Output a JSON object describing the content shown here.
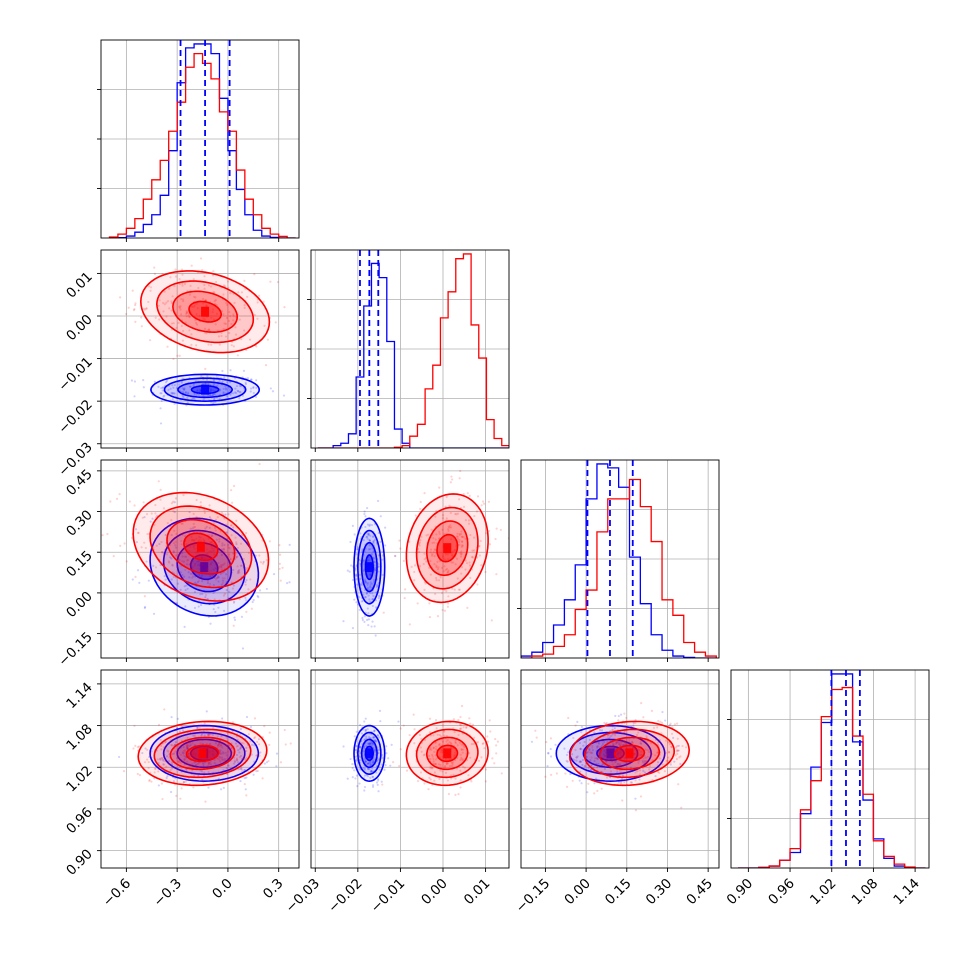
{
  "chart_data": {
    "type": "corner",
    "title": "",
    "series": [
      {
        "name": "",
        "color": "#0000ff"
      },
      {
        "name": "",
        "color": "#ff0000"
      }
    ],
    "params": [
      {
        "range": [
          -0.75,
          0.42
        ],
        "ticks": [
          "−0.6",
          "−0.3",
          "0.0",
          "0.3"
        ],
        "tick_values": [
          -0.6,
          -0.3,
          0.0,
          0.3
        ]
      },
      {
        "range": [
          -0.031,
          0.0155
        ],
        "ticks": [
          "−0.03",
          "−0.02",
          "−0.01",
          "0.00",
          "0.01"
        ],
        "tick_values": [
          -0.03,
          -0.02,
          -0.01,
          0.0,
          0.01
        ]
      },
      {
        "range": [
          -0.24,
          0.49
        ],
        "ticks": [
          "−0.15",
          "0.00",
          "0.15",
          "0.30",
          "0.45"
        ],
        "tick_values": [
          -0.15,
          0.0,
          0.15,
          0.3,
          0.45
        ]
      },
      {
        "range": [
          0.875,
          1.16
        ],
        "ticks": [
          "0.90",
          "0.96",
          "1.02",
          "1.08",
          "1.14"
        ],
        "tick_values": [
          0.9,
          0.96,
          1.02,
          1.08,
          1.14
        ]
      }
    ],
    "quantiles": [
      [
        -0.28,
        -0.135,
        0.01
      ],
      [
        -0.0195,
        -0.0173,
        -0.0152
      ],
      [
        0.005,
        0.088,
        0.172
      ],
      [
        1.0195,
        1.0405,
        1.0605
      ]
    ],
    "histograms": [
      {
        "bins": [
          -0.7,
          -0.65,
          -0.6,
          -0.55,
          -0.5,
          -0.45,
          -0.4,
          -0.35,
          -0.3,
          -0.25,
          -0.2,
          -0.15,
          -0.1,
          -0.05,
          0.0,
          0.05,
          0.1,
          0.15,
          0.2,
          0.25,
          0.3,
          0.35,
          0.4
        ],
        "blue": [
          0,
          0.002,
          0.01,
          0.03,
          0.07,
          0.12,
          0.22,
          0.45,
          0.8,
          0.98,
          1.0,
          1.0,
          0.95,
          0.72,
          0.45,
          0.25,
          0.12,
          0.04,
          0.01,
          0.003,
          0,
          0
        ],
        "red": [
          0.005,
          0.02,
          0.05,
          0.1,
          0.2,
          0.3,
          0.4,
          0.55,
          0.7,
          0.88,
          0.95,
          0.9,
          0.82,
          0.65,
          0.55,
          0.35,
          0.2,
          0.12,
          0.05,
          0.02,
          0.008,
          0
        ]
      },
      {
        "bins": [
          -0.0294,
          -0.0276,
          -0.0258,
          -0.024,
          -0.0222,
          -0.0204,
          -0.0186,
          -0.0168,
          -0.015,
          -0.0132,
          -0.0114,
          -0.0096,
          -0.0078,
          -0.006,
          -0.0042,
          -0.0024,
          -0.0006,
          0.0012,
          0.003,
          0.0048,
          0.0066,
          0.0084,
          0.0102,
          0.012,
          0.0138,
          0.0156
        ],
        "blue": [
          0,
          0,
          0.01,
          0.02,
          0.06,
          0.3,
          0.6,
          0.78,
          0.72,
          0.45,
          0.08,
          0.02,
          0,
          0,
          0,
          0,
          0,
          0,
          0,
          0,
          0,
          0,
          0,
          0,
          0
        ],
        "red": [
          0,
          0,
          0,
          0,
          0,
          0,
          0,
          0,
          0,
          0,
          0.003,
          0.01,
          0.05,
          0.1,
          0.25,
          0.35,
          0.55,
          0.66,
          0.8,
          0.82,
          0.52,
          0.38,
          0.12,
          0.04,
          0.01
        ]
      },
      {
        "bins": [
          -0.24,
          -0.2,
          -0.16,
          -0.12,
          -0.08,
          -0.04,
          0.0,
          0.04,
          0.08,
          0.12,
          0.16,
          0.2,
          0.24,
          0.28,
          0.32,
          0.36,
          0.4,
          0.44,
          0.48
        ],
        "blue": [
          0.01,
          0.03,
          0.08,
          0.17,
          0.3,
          0.48,
          0.82,
          1.0,
          0.98,
          0.88,
          0.52,
          0.28,
          0.12,
          0.04,
          0.01,
          0.003,
          0,
          0
        ],
        "red": [
          0,
          0.01,
          0.02,
          0.06,
          0.12,
          0.25,
          0.35,
          0.65,
          0.82,
          0.82,
          0.92,
          0.78,
          0.6,
          0.3,
          0.22,
          0.08,
          0.03,
          0.01
        ]
      },
      {
        "bins": [
          0.885,
          0.9,
          0.915,
          0.93,
          0.945,
          0.96,
          0.975,
          0.99,
          1.005,
          1.02,
          1.035,
          1.05,
          1.065,
          1.08,
          1.095,
          1.11,
          1.125,
          1.14,
          1.155
        ],
        "blue": [
          0,
          0,
          0.003,
          0.01,
          0.04,
          0.08,
          0.28,
          0.52,
          0.75,
          1.0,
          1.0,
          0.65,
          0.35,
          0.15,
          0.05,
          0.01,
          0,
          0
        ],
        "red": [
          0,
          0,
          0.003,
          0.01,
          0.04,
          0.1,
          0.3,
          0.45,
          0.78,
          0.92,
          0.93,
          0.68,
          0.38,
          0.14,
          0.06,
          0.02,
          0.005,
          0
        ]
      }
    ],
    "contours_2d": [
      {
        "x": 0,
        "y": 1,
        "blue": {
          "center": [
            -0.135,
            -0.0173
          ],
          "sigma": [
            0.16,
            0.0018
          ],
          "rho": 0.0
        },
        "red": {
          "center": [
            -0.135,
            0.001
          ],
          "sigma": [
            0.19,
            0.0048
          ],
          "rho": -0.25
        }
      },
      {
        "x": 0,
        "y": 2,
        "blue": {
          "center": [
            -0.14,
            0.095
          ],
          "sigma": [
            0.16,
            0.09
          ],
          "rho": -0.15
        },
        "red": {
          "center": [
            -0.16,
            0.17
          ],
          "sigma": [
            0.2,
            0.1
          ],
          "rho": -0.25
        }
      },
      {
        "x": 1,
        "y": 2,
        "blue": {
          "center": [
            -0.0173,
            0.095
          ],
          "sigma": [
            0.0018,
            0.09
          ],
          "rho": 0.0
        },
        "red": {
          "center": [
            0.001,
            0.165
          ],
          "sigma": [
            0.0048,
            0.1
          ],
          "rho": 0.15
        }
      },
      {
        "x": 0,
        "y": 3,
        "blue": {
          "center": [
            -0.14,
            1.04
          ],
          "sigma": [
            0.16,
            0.02
          ],
          "rho": 0.0
        },
        "red": {
          "center": [
            -0.15,
            1.04
          ],
          "sigma": [
            0.19,
            0.023
          ],
          "rho": 0.1
        }
      },
      {
        "x": 1,
        "y": 3,
        "blue": {
          "center": [
            -0.0173,
            1.04
          ],
          "sigma": [
            0.0018,
            0.02
          ],
          "rho": 0.0
        },
        "red": {
          "center": [
            0.001,
            1.04
          ],
          "sigma": [
            0.0048,
            0.023
          ],
          "rho": 0.05
        }
      },
      {
        "x": 2,
        "y": 3,
        "blue": {
          "center": [
            0.09,
            1.04
          ],
          "sigma": [
            0.1,
            0.02
          ],
          "rho": 0.0
        },
        "red": {
          "center": [
            0.16,
            1.04
          ],
          "sigma": [
            0.11,
            0.023
          ],
          "rho": 0.1
        }
      }
    ],
    "grid": true,
    "legend": "none"
  }
}
